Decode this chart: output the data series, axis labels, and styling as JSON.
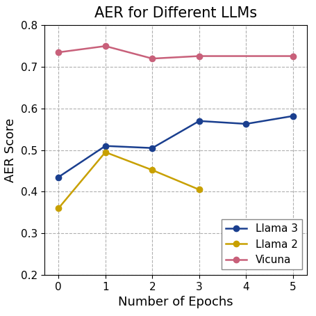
{
  "title": "AER for Different LLMs",
  "xlabel": "Number of Epochs",
  "ylabel": "AER Score",
  "xlim": [
    -0.3,
    5.3
  ],
  "ylim": [
    0.2,
    0.8
  ],
  "yticks": [
    0.2,
    0.3,
    0.4,
    0.5,
    0.6,
    0.7,
    0.8
  ],
  "xticks": [
    0,
    1,
    2,
    3,
    4,
    5
  ],
  "series": [
    {
      "label": "Llama 3",
      "x": [
        0,
        1,
        2,
        3,
        4,
        5
      ],
      "y": [
        0.435,
        0.51,
        0.505,
        0.57,
        0.563,
        0.582
      ],
      "color": "#1a3f8f",
      "marker": "o",
      "linewidth": 1.8,
      "markersize": 6
    },
    {
      "label": "Llama 2",
      "x": [
        0,
        1,
        2,
        3
      ],
      "y": [
        0.36,
        0.495,
        0.452,
        0.405
      ],
      "color": "#c8a000",
      "marker": "o",
      "linewidth": 1.8,
      "markersize": 6
    },
    {
      "label": "Vicuna",
      "x": [
        0,
        1,
        2,
        3,
        5
      ],
      "y": [
        0.735,
        0.75,
        0.72,
        0.726,
        0.726
      ],
      "color": "#c8607a",
      "marker": "o",
      "linewidth": 1.8,
      "markersize": 6
    }
  ],
  "legend_loc": "lower right",
  "grid_color": "#b0b0b0",
  "grid_linestyle": "--",
  "background_color": "#ffffff",
  "title_fontsize": 15,
  "label_fontsize": 13,
  "tick_fontsize": 11,
  "legend_fontsize": 11
}
